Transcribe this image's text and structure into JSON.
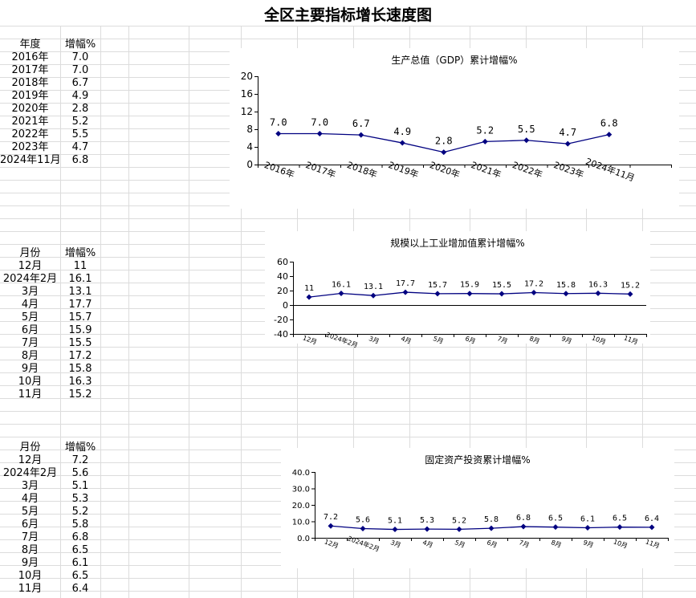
{
  "page": {
    "title": "全区主要指标增长速度图"
  },
  "tables": [
    {
      "header": [
        "年度",
        "增幅%"
      ],
      "rows": [
        [
          "2016年",
          "7.0"
        ],
        [
          "2017年",
          "7.0"
        ],
        [
          "2018年",
          "6.7"
        ],
        [
          "2019年",
          "4.9"
        ],
        [
          "2020年",
          "2.8"
        ],
        [
          "2021年",
          "5.2"
        ],
        [
          "2022年",
          "5.5"
        ],
        [
          "2023年",
          "4.7"
        ],
        [
          "2024年11月",
          "6.8"
        ]
      ]
    },
    {
      "header": [
        "月份",
        "增幅%"
      ],
      "rows": [
        [
          "12月",
          "11"
        ],
        [
          "2024年2月",
          "16.1"
        ],
        [
          "3月",
          "13.1"
        ],
        [
          "4月",
          "17.7"
        ],
        [
          "5月",
          "15.7"
        ],
        [
          "6月",
          "15.9"
        ],
        [
          "7月",
          "15.5"
        ],
        [
          "8月",
          "17.2"
        ],
        [
          "9月",
          "15.8"
        ],
        [
          "10月",
          "16.3"
        ],
        [
          "11月",
          "15.2"
        ]
      ]
    },
    {
      "header": [
        "月份",
        "增幅%"
      ],
      "rows": [
        [
          "12月",
          "7.2"
        ],
        [
          "2024年2月",
          "5.6"
        ],
        [
          "3月",
          "5.1"
        ],
        [
          "4月",
          "5.3"
        ],
        [
          "5月",
          "5.2"
        ],
        [
          "6月",
          "5.8"
        ],
        [
          "7月",
          "6.8"
        ],
        [
          "8月",
          "6.5"
        ],
        [
          "9月",
          "6.1"
        ],
        [
          "10月",
          "6.5"
        ],
        [
          "11月",
          "6.4"
        ]
      ]
    }
  ],
  "chart_data": [
    {
      "type": "line",
      "title": "生产总值（GDP）累计增幅%",
      "categories": [
        "2016年",
        "2017年",
        "2018年",
        "2019年",
        "2020年",
        "2021年",
        "2022年",
        "2023年",
        "2024年11月",
        ""
      ],
      "values": [
        7.0,
        7.0,
        6.7,
        4.9,
        2.8,
        5.2,
        5.5,
        4.7,
        6.8,
        null
      ],
      "data_labels": [
        "7.0",
        "7.0",
        "6.7",
        "4.9",
        "2.8",
        "5.2",
        "5.5",
        "4.7",
        "6.8",
        ""
      ],
      "ylim": [
        0,
        20
      ],
      "yticks": [
        0,
        4,
        8,
        12,
        16,
        20
      ],
      "ytick_labels": [
        "0",
        "4",
        "8",
        "12",
        "16",
        "20"
      ],
      "line_color": "#000080",
      "grid": false
    },
    {
      "type": "line",
      "title": "规模以上工业增加值累计增幅%",
      "categories": [
        "12月",
        "2024年2月",
        "3月",
        "4月",
        "5月",
        "6月",
        "7月",
        "8月",
        "9月",
        "10月",
        "11月"
      ],
      "values": [
        11,
        16.1,
        13.1,
        17.7,
        15.7,
        15.9,
        15.5,
        17.2,
        15.8,
        16.3,
        15.2
      ],
      "data_labels": [
        "11",
        "16.1",
        "13.1",
        "17.7",
        "15.7",
        "15.9",
        "15.5",
        "17.2",
        "15.8",
        "16.3",
        "15.2"
      ],
      "ylim": [
        -40,
        60
      ],
      "yticks": [
        -40,
        -20,
        0,
        20,
        40,
        60
      ],
      "ytick_labels": [
        "-40",
        "-20",
        "0",
        "20",
        "40",
        "60"
      ],
      "line_color": "#000080",
      "grid": false
    },
    {
      "type": "line",
      "title": "固定资产投资累计增幅%",
      "categories": [
        "12月",
        "2024年2月",
        "3月",
        "4月",
        "5月",
        "6月",
        "7月",
        "8月",
        "9月",
        "10月",
        "11月"
      ],
      "values": [
        7.2,
        5.6,
        5.1,
        5.3,
        5.2,
        5.8,
        6.8,
        6.5,
        6.1,
        6.5,
        6.4
      ],
      "data_labels": [
        "7.2",
        "5.6",
        "5.1",
        "5.3",
        "5.2",
        "5.8",
        "6.8",
        "6.5",
        "6.1",
        "6.5",
        "6.4"
      ],
      "ylim": [
        0,
        40
      ],
      "yticks": [
        0,
        10,
        20,
        30,
        40
      ],
      "ytick_labels": [
        "0.0",
        "10.0",
        "20.0",
        "30.0",
        "40.0"
      ],
      "line_color": "#000080",
      "grid": false
    }
  ]
}
